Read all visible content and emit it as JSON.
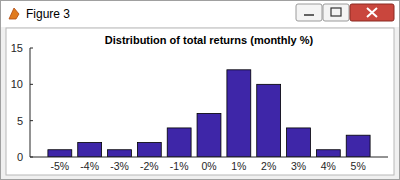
{
  "window_title": "Figure 3",
  "chart_data": {
    "type": "bar",
    "title": "Distribution of total returns (monthly %)",
    "categories": [
      "-5%",
      "-4%",
      "-3%",
      "-2%",
      "-1%",
      "0%",
      "1%",
      "2%",
      "3%",
      "4%",
      "5%"
    ],
    "values": [
      1,
      2,
      1,
      2,
      4,
      6,
      12,
      10,
      4,
      1,
      3
    ],
    "color": "#3e26a8",
    "ylim": [
      0,
      15
    ],
    "yticks": [
      0,
      5,
      10,
      15
    ],
    "grid": false
  }
}
